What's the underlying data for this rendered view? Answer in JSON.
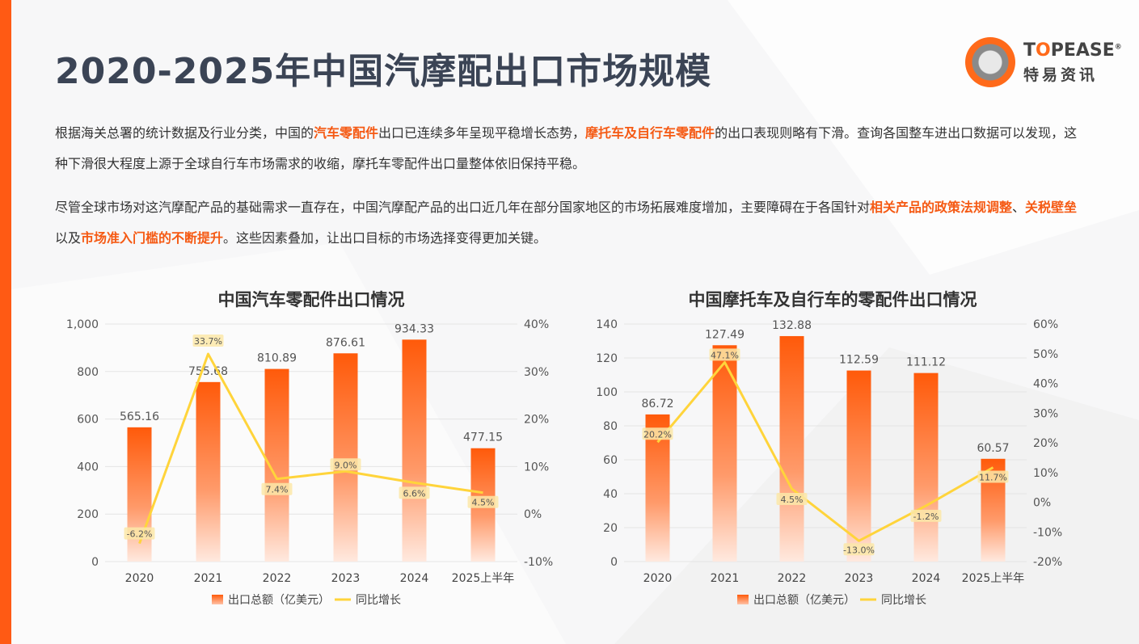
{
  "page": {
    "title": "2020-2025年中国汽摩配出口市场规模",
    "logo": {
      "brand_en_top": "T",
      "brand_en_o": "O",
      "brand_en_rest": "PEASE",
      "registered": "®",
      "brand_cn": "特易资讯"
    },
    "paragraph1": {
      "t1": "根据海关总署的统计数据及行业分类，中国的",
      "h1": "汽车零配件",
      "t2": "出口已连续多年呈现平稳增长态势，",
      "h2": "摩托车及自行车零配件",
      "t3": "的出口表现则略有下滑。查询各国整车进出口数据可以发现，这种下滑很大程度上源于全球自行车市场需求的收缩，摩托车零配件出口量整体依旧保持平稳。"
    },
    "paragraph2": {
      "t1": "尽管全球市场对这汽摩配产品的基础需求一直存在，中国汽摩配产品的出口近几年在部分国家地区的市场拓展难度增加，主要障碍在于各国针对",
      "h1": "相关产品的政策法规调整",
      "t2": "、",
      "h2": "关税壁垒",
      "t3": "以及",
      "h3": "市场准入门槛的不断提升",
      "t4": "。这些因素叠加，让出口目标的市场选择变得更加关键。"
    },
    "colors": {
      "accent": "#ff5a14",
      "line": "#ffd43b"
    }
  },
  "chart_data": [
    {
      "type": "bar",
      "title": "中国汽车零配件出口情况",
      "categories": [
        "2020",
        "2021",
        "2022",
        "2023",
        "2024",
        "2025上半年"
      ],
      "series": [
        {
          "name": "出口总额（亿美元）",
          "type": "bar",
          "axis": "left",
          "values": [
            565.16,
            755.68,
            810.89,
            876.61,
            934.33,
            477.15
          ]
        },
        {
          "name": "同比增长",
          "type": "line",
          "axis": "right",
          "values": [
            -6.2,
            33.7,
            7.4,
            9.0,
            6.6,
            4.5
          ]
        }
      ],
      "value_labels": [
        "565.16",
        "755.68",
        "810.89",
        "876.61",
        "934.33",
        "477.15"
      ],
      "growth_labels": [
        "-6.2%",
        "33.7%",
        "7.4%",
        "9.0%",
        "6.6%",
        "4.5%"
      ],
      "left_axis": {
        "ylim": [
          0,
          1000
        ],
        "ticks": [
          "0",
          "200",
          "400",
          "600",
          "800",
          "1,000"
        ]
      },
      "right_axis": {
        "ylim": [
          -10,
          40
        ],
        "ticks": [
          "-10%",
          "0%",
          "10%",
          "20%",
          "30%",
          "40%"
        ]
      },
      "legend": {
        "bar": "出口总额（亿美元）",
        "line": "同比增长",
        "position": "bottom"
      }
    },
    {
      "type": "bar",
      "title": "中国摩托车及自行车的零配件出口情况",
      "categories": [
        "2020",
        "2021",
        "2022",
        "2023",
        "2024",
        "2025上半年"
      ],
      "series": [
        {
          "name": "出口总额（亿美元）",
          "type": "bar",
          "axis": "left",
          "values": [
            86.72,
            127.49,
            132.88,
            112.59,
            111.12,
            60.57
          ]
        },
        {
          "name": "同比增长",
          "type": "line",
          "axis": "right",
          "values": [
            20.2,
            47.1,
            4.5,
            -13.0,
            -1.2,
            11.7
          ]
        }
      ],
      "value_labels": [
        "86.72",
        "127.49",
        "132.88",
        "112.59",
        "111.12",
        "60.57"
      ],
      "growth_labels": [
        "20.2%",
        "47.1%",
        "4.5%",
        "-13.0%",
        "-1.2%",
        "11.7%"
      ],
      "left_axis": {
        "ylim": [
          0,
          140
        ],
        "ticks": [
          "0",
          "20",
          "40",
          "60",
          "80",
          "100",
          "120",
          "140"
        ]
      },
      "right_axis": {
        "ylim": [
          -20,
          60
        ],
        "ticks": [
          "-20%",
          "-10%",
          "0%",
          "10%",
          "20%",
          "30%",
          "40%",
          "50%",
          "60%"
        ]
      },
      "legend": {
        "bar": "出口总额（亿美元）",
        "line": "同比增长",
        "position": "bottom"
      }
    }
  ]
}
